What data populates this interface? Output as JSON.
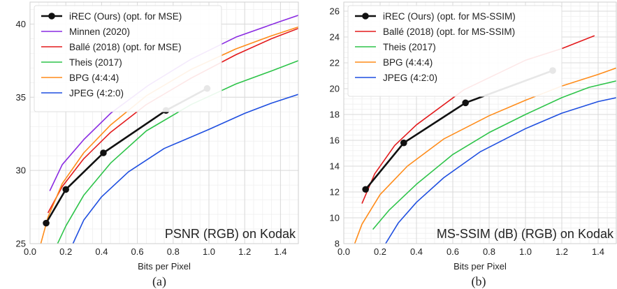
{
  "chart_data": [
    {
      "type": "line",
      "title": "PSNR (RGB) on Kodak",
      "xlabel": "Bits per Pixel",
      "ylabel": "",
      "caption": "(a)",
      "xlim": [
        0.0,
        1.5
      ],
      "ylim": [
        25,
        41.5
      ],
      "xticks": [
        "0.0",
        "0.2",
        "0.4",
        "0.6",
        "0.8",
        "1.0",
        "1.2",
        "1.4"
      ],
      "xtick_values": [
        0.0,
        0.2,
        0.4,
        0.6,
        0.8,
        1.0,
        1.2,
        1.4
      ],
      "yticks": [
        "25",
        "30",
        "35",
        "40"
      ],
      "ytick_values": [
        25,
        30,
        35,
        40
      ],
      "grid": true,
      "legend_position": "top-left",
      "series": [
        {
          "name": "iREC (Ours) (opt. for MSE)",
          "color": "#111111",
          "markers": true,
          "x": [
            0.09,
            0.2,
            0.41,
            0.76,
            0.99
          ],
          "y": [
            26.4,
            28.7,
            31.2,
            34.1,
            35.6
          ]
        },
        {
          "name": "Minnen (2020)",
          "color": "#8a2be2",
          "x": [
            0.11,
            0.18,
            0.3,
            0.45,
            0.66,
            0.9,
            1.15,
            1.38,
            1.5
          ],
          "y": [
            28.6,
            30.4,
            32.1,
            33.9,
            35.8,
            37.6,
            39.1,
            40.1,
            40.6
          ]
        },
        {
          "name": "Ballé (2018) (opt. for MSE)",
          "color": "#e31a1c",
          "x": [
            0.1,
            0.18,
            0.3,
            0.45,
            0.65,
            0.9,
            1.15,
            1.35,
            1.5
          ],
          "y": [
            27.1,
            28.9,
            30.8,
            32.6,
            34.5,
            36.3,
            37.9,
            39.0,
            39.7
          ]
        },
        {
          "name": "Theis (2017)",
          "color": "#2ec44a",
          "x": [
            0.15,
            0.2,
            0.3,
            0.45,
            0.65,
            0.9,
            1.15,
            1.35,
            1.5
          ],
          "y": [
            24.9,
            26.2,
            28.3,
            30.5,
            32.7,
            34.5,
            35.9,
            36.8,
            37.5
          ]
        },
        {
          "name": "BPG (4:4:4)",
          "color": "#ff8c1a",
          "x": [
            0.06,
            0.1,
            0.18,
            0.3,
            0.45,
            0.65,
            0.9,
            1.15,
            1.35,
            1.5
          ],
          "y": [
            25.0,
            26.8,
            29.1,
            31.2,
            33.1,
            35.1,
            36.9,
            38.3,
            39.2,
            39.8
          ]
        },
        {
          "name": "JPEG (4:2:0)",
          "color": "#1f4fe0",
          "x": [
            0.24,
            0.3,
            0.4,
            0.55,
            0.75,
            1.0,
            1.2,
            1.35,
            1.5
          ],
          "y": [
            25.0,
            26.6,
            28.2,
            29.9,
            31.5,
            32.8,
            33.9,
            34.6,
            35.2
          ]
        }
      ]
    },
    {
      "type": "line",
      "title": "MS-SSIM (dB) (RGB) on Kodak",
      "xlabel": "Bits per Pixel",
      "ylabel": "",
      "caption": "(b)",
      "xlim": [
        0.0,
        1.5
      ],
      "ylim": [
        8,
        26.7
      ],
      "xticks": [
        "0.0",
        "0.2",
        "0.4",
        "0.6",
        "0.8",
        "1.0",
        "1.2",
        "1.4"
      ],
      "xtick_values": [
        0.0,
        0.2,
        0.4,
        0.6,
        0.8,
        1.0,
        1.2,
        1.4
      ],
      "yticks": [
        "8",
        "10",
        "12",
        "14",
        "16",
        "18",
        "20",
        "22",
        "24",
        "26"
      ],
      "ytick_values": [
        8,
        10,
        12,
        14,
        16,
        18,
        20,
        22,
        24,
        26
      ],
      "grid": true,
      "legend_position": "top-left",
      "series": [
        {
          "name": "iREC (Ours) (opt. for MS-SSIM)",
          "color": "#111111",
          "markers": true,
          "x": [
            0.12,
            0.33,
            0.67,
            1.15
          ],
          "y": [
            12.2,
            15.8,
            18.9,
            21.4
          ]
        },
        {
          "name": "Ballé (2018) (opt. for MS-SSIM)",
          "color": "#e31a1c",
          "x": [
            0.1,
            0.17,
            0.28,
            0.4,
            0.66,
            1.0,
            1.2,
            1.38
          ],
          "y": [
            11.1,
            13.4,
            15.6,
            17.2,
            19.9,
            22.2,
            23.1,
            24.1
          ]
        },
        {
          "name": "Theis (2017)",
          "color": "#2ec44a",
          "x": [
            0.16,
            0.25,
            0.4,
            0.6,
            0.8,
            1.0,
            1.2,
            1.35,
            1.5
          ],
          "y": [
            9.1,
            10.6,
            12.6,
            14.9,
            16.6,
            18.0,
            19.3,
            20.1,
            20.6
          ]
        },
        {
          "name": "BPG (4:4:4)",
          "color": "#ff8c1a",
          "x": [
            0.06,
            0.1,
            0.2,
            0.35,
            0.55,
            0.8,
            1.0,
            1.2,
            1.4,
            1.5
          ],
          "y": [
            8.0,
            9.5,
            11.8,
            14.0,
            16.1,
            17.9,
            19.1,
            20.2,
            21.1,
            21.6
          ]
        },
        {
          "name": "JPEG (4:2:0)",
          "color": "#1f4fe0",
          "x": [
            0.23,
            0.3,
            0.4,
            0.55,
            0.75,
            1.0,
            1.2,
            1.4,
            1.5
          ],
          "y": [
            8.0,
            9.6,
            11.2,
            13.1,
            15.1,
            16.9,
            18.1,
            19.0,
            19.3
          ]
        }
      ]
    }
  ]
}
